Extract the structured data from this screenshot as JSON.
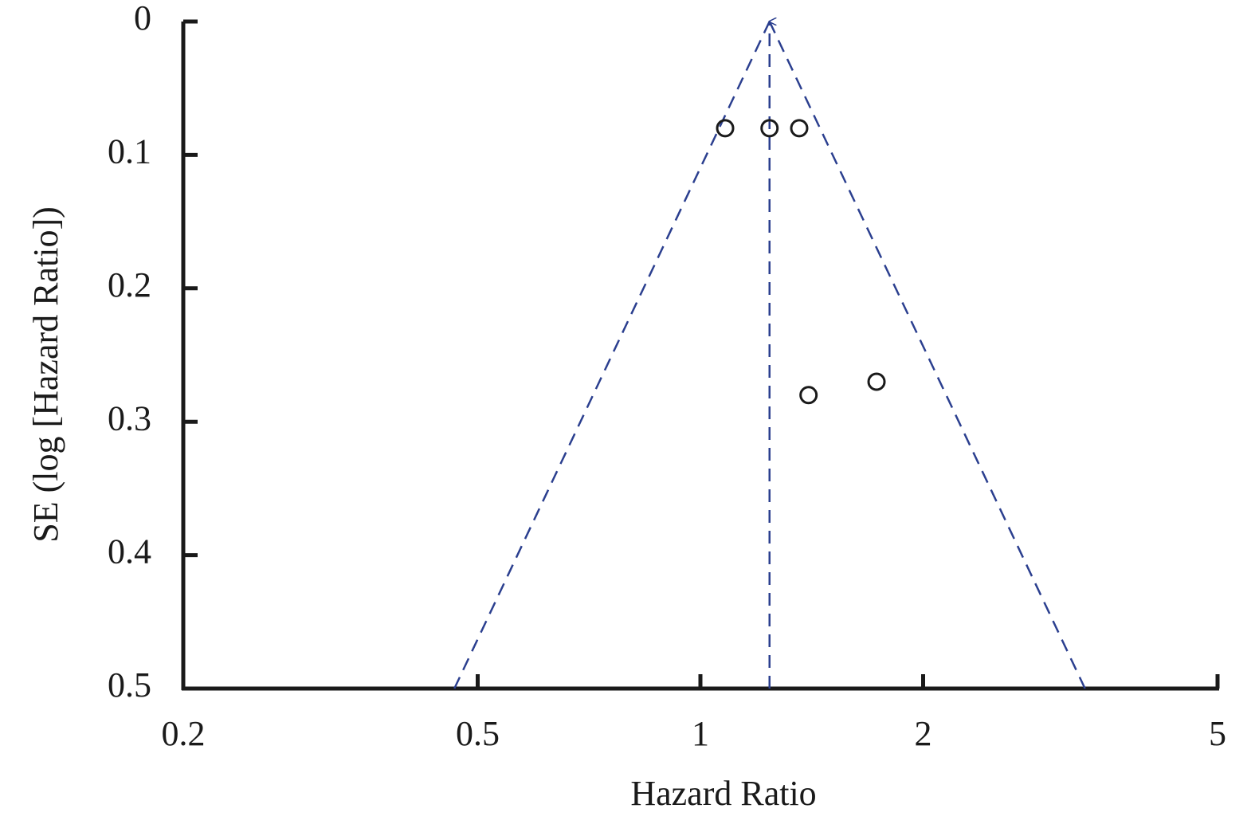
{
  "chart_data": {
    "type": "scatter",
    "xlabel": "Hazard Ratio",
    "ylabel": "SE (log [Hazard Ratio])",
    "x": [
      1.08,
      1.24,
      1.36,
      1.4,
      1.73
    ],
    "values": [
      0.08,
      0.08,
      0.08,
      0.28,
      0.27
    ],
    "color": "#1a1a1a",
    "xlim": [
      0.2,
      5
    ],
    "xticks": [
      0.2,
      0.5,
      1,
      2,
      5
    ],
    "xscale": "log",
    "ylim": [
      0.5,
      0
    ],
    "yticks": [
      0,
      0.1,
      0.2,
      0.3,
      0.4,
      0.5
    ],
    "funnel": {
      "color": "#2b3f8f",
      "apex": [
        1.24,
        0
      ],
      "left": [
        0.465,
        0.5
      ],
      "right": [
        3.31,
        0.5
      ]
    }
  }
}
